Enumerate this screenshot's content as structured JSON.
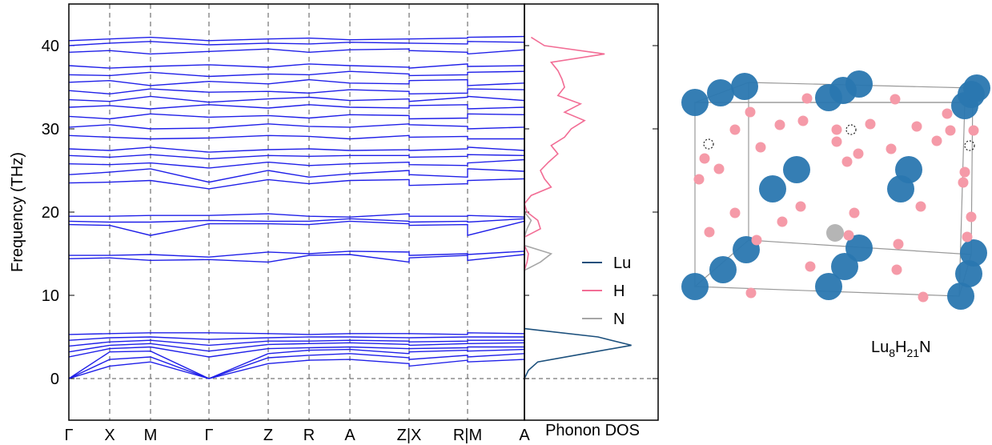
{
  "chart_data": [
    {
      "type": "bands",
      "ylabel": "Frequency (THz)",
      "color": "#1f1fe8",
      "x": [
        0,
        0.51,
        1.02,
        1.75,
        2.49,
        3.0,
        3.51,
        4.25,
        4.25,
        4.98,
        4.98,
        5.69
      ],
      "xlim": [
        0,
        5.69
      ],
      "xticks": [
        {
          "value": 0,
          "label": "Γ"
        },
        {
          "value": 0.51,
          "label": "X"
        },
        {
          "value": 1.02,
          "label": "M"
        },
        {
          "value": 1.75,
          "label": "Γ"
        },
        {
          "value": 2.49,
          "label": "Z"
        },
        {
          "value": 3.0,
          "label": "R"
        },
        {
          "value": 3.51,
          "label": "A"
        },
        {
          "value": 4.25,
          "label": "Z|X"
        },
        {
          "value": 4.98,
          "label": "R|M"
        },
        {
          "value": 5.69,
          "label": "A"
        }
      ],
      "ylim": [
        -5,
        45
      ],
      "yticks": [
        0,
        10,
        20,
        30,
        40
      ],
      "series": [
        {
          "values": [
            0,
            1.5,
            2.0,
            0,
            1.8,
            2.2,
            2.3,
            1.8,
            1.5,
            2.2,
            2.0,
            2.3
          ]
        },
        {
          "values": [
            0,
            2.3,
            2.6,
            0,
            2.5,
            2.8,
            3.0,
            2.5,
            2.3,
            2.8,
            2.6,
            3.0
          ]
        },
        {
          "values": [
            0,
            3.2,
            3.3,
            0,
            3.0,
            3.4,
            3.5,
            3.0,
            3.2,
            3.4,
            3.3,
            3.5
          ]
        },
        {
          "values": [
            2.6,
            3.6,
            3.8,
            2.6,
            3.6,
            3.7,
            3.8,
            3.6,
            3.6,
            3.7,
            3.8,
            3.8
          ]
        },
        {
          "values": [
            3.2,
            4.0,
            4.2,
            3.3,
            4.1,
            4.2,
            4.3,
            4.1,
            4.0,
            4.2,
            4.2,
            4.3
          ]
        },
        {
          "values": [
            3.9,
            4.4,
            4.6,
            4.0,
            4.5,
            4.5,
            4.6,
            4.5,
            4.4,
            4.5,
            4.6,
            4.6
          ]
        },
        {
          "values": [
            4.6,
            4.9,
            5.0,
            4.7,
            4.9,
            5.0,
            5.0,
            4.9,
            4.9,
            5.0,
            5.0,
            5.0
          ]
        },
        {
          "values": [
            5.3,
            5.4,
            5.5,
            5.5,
            5.4,
            5.3,
            5.4,
            5.4,
            5.4,
            5.3,
            5.5,
            5.4
          ]
        },
        {
          "values": [
            14.4,
            14.5,
            14.2,
            14.3,
            14.0,
            14.8,
            14.9,
            14.0,
            14.5,
            14.8,
            14.2,
            14.9
          ]
        },
        {
          "values": [
            14.8,
            14.8,
            14.9,
            14.6,
            15.2,
            15.0,
            15.3,
            15.2,
            14.8,
            15.0,
            14.9,
            15.3
          ]
        },
        {
          "values": [
            18.5,
            18.4,
            17.2,
            18.6,
            18.6,
            18.5,
            18.9,
            18.6,
            18.4,
            18.5,
            17.2,
            18.9
          ]
        },
        {
          "values": [
            18.9,
            18.8,
            18.8,
            19.0,
            18.9,
            18.9,
            19.2,
            18.9,
            18.8,
            18.9,
            18.8,
            19.2
          ]
        },
        {
          "values": [
            19.5,
            19.5,
            19.6,
            19.6,
            19.8,
            19.5,
            19.4,
            19.8,
            19.5,
            19.5,
            19.6,
            19.4
          ]
        },
        {
          "values": [
            23.5,
            23.6,
            23.8,
            22.8,
            23.9,
            23.4,
            23.8,
            23.9,
            23.2,
            23.4,
            23.8,
            24.0
          ]
        },
        {
          "values": [
            24.5,
            24.8,
            25.2,
            23.6,
            25.0,
            24.2,
            24.6,
            25.0,
            24.5,
            24.2,
            25.2,
            24.9
          ]
        },
        {
          "values": [
            25.8,
            25.7,
            25.9,
            25.3,
            26.0,
            25.6,
            25.8,
            26.0,
            25.7,
            25.6,
            25.9,
            26.3
          ]
        },
        {
          "values": [
            26.8,
            26.6,
            26.9,
            26.4,
            26.8,
            26.7,
            26.8,
            26.8,
            26.6,
            26.7,
            26.9,
            26.8
          ]
        },
        {
          "values": [
            27.6,
            27.4,
            27.8,
            27.2,
            27.5,
            27.6,
            27.4,
            27.5,
            27.4,
            27.6,
            27.8,
            27.4
          ]
        },
        {
          "values": [
            29.2,
            29.0,
            28.8,
            28.9,
            29.2,
            29.1,
            28.8,
            29.2,
            29.0,
            29.1,
            28.8,
            28.8
          ]
        },
        {
          "values": [
            30.2,
            30.5,
            30.0,
            30.1,
            30.6,
            30.3,
            30.2,
            30.6,
            30.5,
            30.3,
            30.0,
            30.2
          ]
        },
        {
          "values": [
            31.5,
            31.2,
            31.8,
            31.4,
            31.6,
            31.3,
            31.7,
            31.6,
            31.2,
            31.3,
            31.8,
            31.7
          ]
        },
        {
          "values": [
            32.6,
            32.8,
            32.4,
            32.9,
            32.5,
            32.9,
            32.6,
            32.5,
            32.8,
            32.9,
            32.4,
            32.6
          ]
        },
        {
          "values": [
            33.5,
            33.3,
            33.9,
            33.2,
            33.6,
            33.8,
            33.4,
            33.6,
            33.3,
            33.8,
            33.9,
            33.4
          ]
        },
        {
          "values": [
            34.6,
            34.2,
            34.8,
            34.4,
            34.5,
            34.3,
            34.7,
            34.5,
            34.2,
            34.3,
            34.8,
            34.7
          ]
        },
        {
          "values": [
            35.6,
            35.8,
            35.2,
            35.7,
            35.4,
            35.9,
            35.5,
            35.4,
            35.8,
            35.9,
            35.2,
            35.5
          ]
        },
        {
          "values": [
            36.5,
            36.4,
            36.8,
            36.3,
            36.6,
            36.5,
            36.9,
            36.6,
            36.4,
            36.5,
            36.8,
            36.9
          ]
        },
        {
          "values": [
            37.6,
            37.3,
            37.5,
            37.7,
            37.4,
            37.8,
            37.6,
            37.4,
            37.3,
            37.8,
            37.5,
            37.6
          ]
        },
        {
          "values": [
            39.2,
            39.4,
            39.0,
            39.3,
            39.6,
            39.2,
            39.5,
            39.6,
            39.4,
            39.2,
            39.0,
            39.5
          ]
        },
        {
          "values": [
            40.0,
            40.3,
            40.5,
            40.1,
            40.3,
            40.2,
            40.4,
            40.3,
            40.3,
            40.2,
            40.5,
            40.4
          ]
        },
        {
          "values": [
            40.6,
            40.8,
            41.0,
            40.6,
            40.8,
            40.9,
            40.7,
            40.8,
            40.8,
            40.9,
            41.0,
            41.1
          ]
        }
      ]
    },
    {
      "type": "dos",
      "xlabel": "Phonon DOS",
      "xlim": [
        0,
        1
      ],
      "ylim": [
        -5,
        45
      ],
      "yticks": [
        0,
        10,
        20,
        30,
        40
      ],
      "x": [
        0,
        1,
        2,
        3,
        4,
        5,
        6,
        7,
        8,
        9,
        10,
        11,
        12,
        13,
        14,
        15,
        16,
        17,
        18,
        19,
        20,
        21,
        22,
        23,
        24,
        25,
        26,
        27,
        28,
        29,
        30,
        31,
        32,
        33,
        34,
        35,
        36,
        37,
        38,
        39,
        40,
        41
      ],
      "series": [
        {
          "name": "Lu",
          "color": "#1b4f7c",
          "values": [
            0,
            0.03,
            0.1,
            0.45,
            0.8,
            0.55,
            0,
            null,
            null,
            null,
            null,
            null,
            null,
            null,
            null,
            null,
            null,
            null,
            null,
            null,
            null,
            null,
            null,
            null,
            null,
            null,
            null,
            null,
            null,
            null,
            null,
            null,
            null,
            null,
            null,
            null,
            null,
            null,
            null,
            null,
            null,
            null
          ]
        },
        {
          "name": "H",
          "color": "#f26d95",
          "values": [
            null,
            null,
            null,
            null,
            null,
            null,
            null,
            null,
            null,
            null,
            null,
            null,
            null,
            0,
            0.02,
            0.03,
            0,
            0,
            0.12,
            0.1,
            0.02,
            0,
            0.05,
            0.2,
            0.15,
            0.12,
            0.18,
            0.25,
            0.2,
            0.3,
            0.35,
            0.45,
            0.3,
            0.42,
            0.25,
            0.3,
            0.28,
            0.25,
            0.2,
            0.6,
            0.15,
            0.05
          ]
        },
        {
          "name": "N",
          "color": "#a6a6a6",
          "values": [
            null,
            null,
            null,
            null,
            null,
            null,
            null,
            null,
            null,
            null,
            null,
            null,
            null,
            0,
            0.12,
            0.2,
            0,
            0,
            0.02,
            0.05,
            0,
            null,
            null,
            null,
            null,
            null,
            null,
            null,
            null,
            null,
            null,
            null,
            null,
            null,
            null,
            null,
            null,
            null,
            null,
            null,
            null,
            null
          ]
        }
      ]
    }
  ],
  "structure_label": [
    "Lu",
    "8",
    "H",
    "21",
    "N"
  ]
}
